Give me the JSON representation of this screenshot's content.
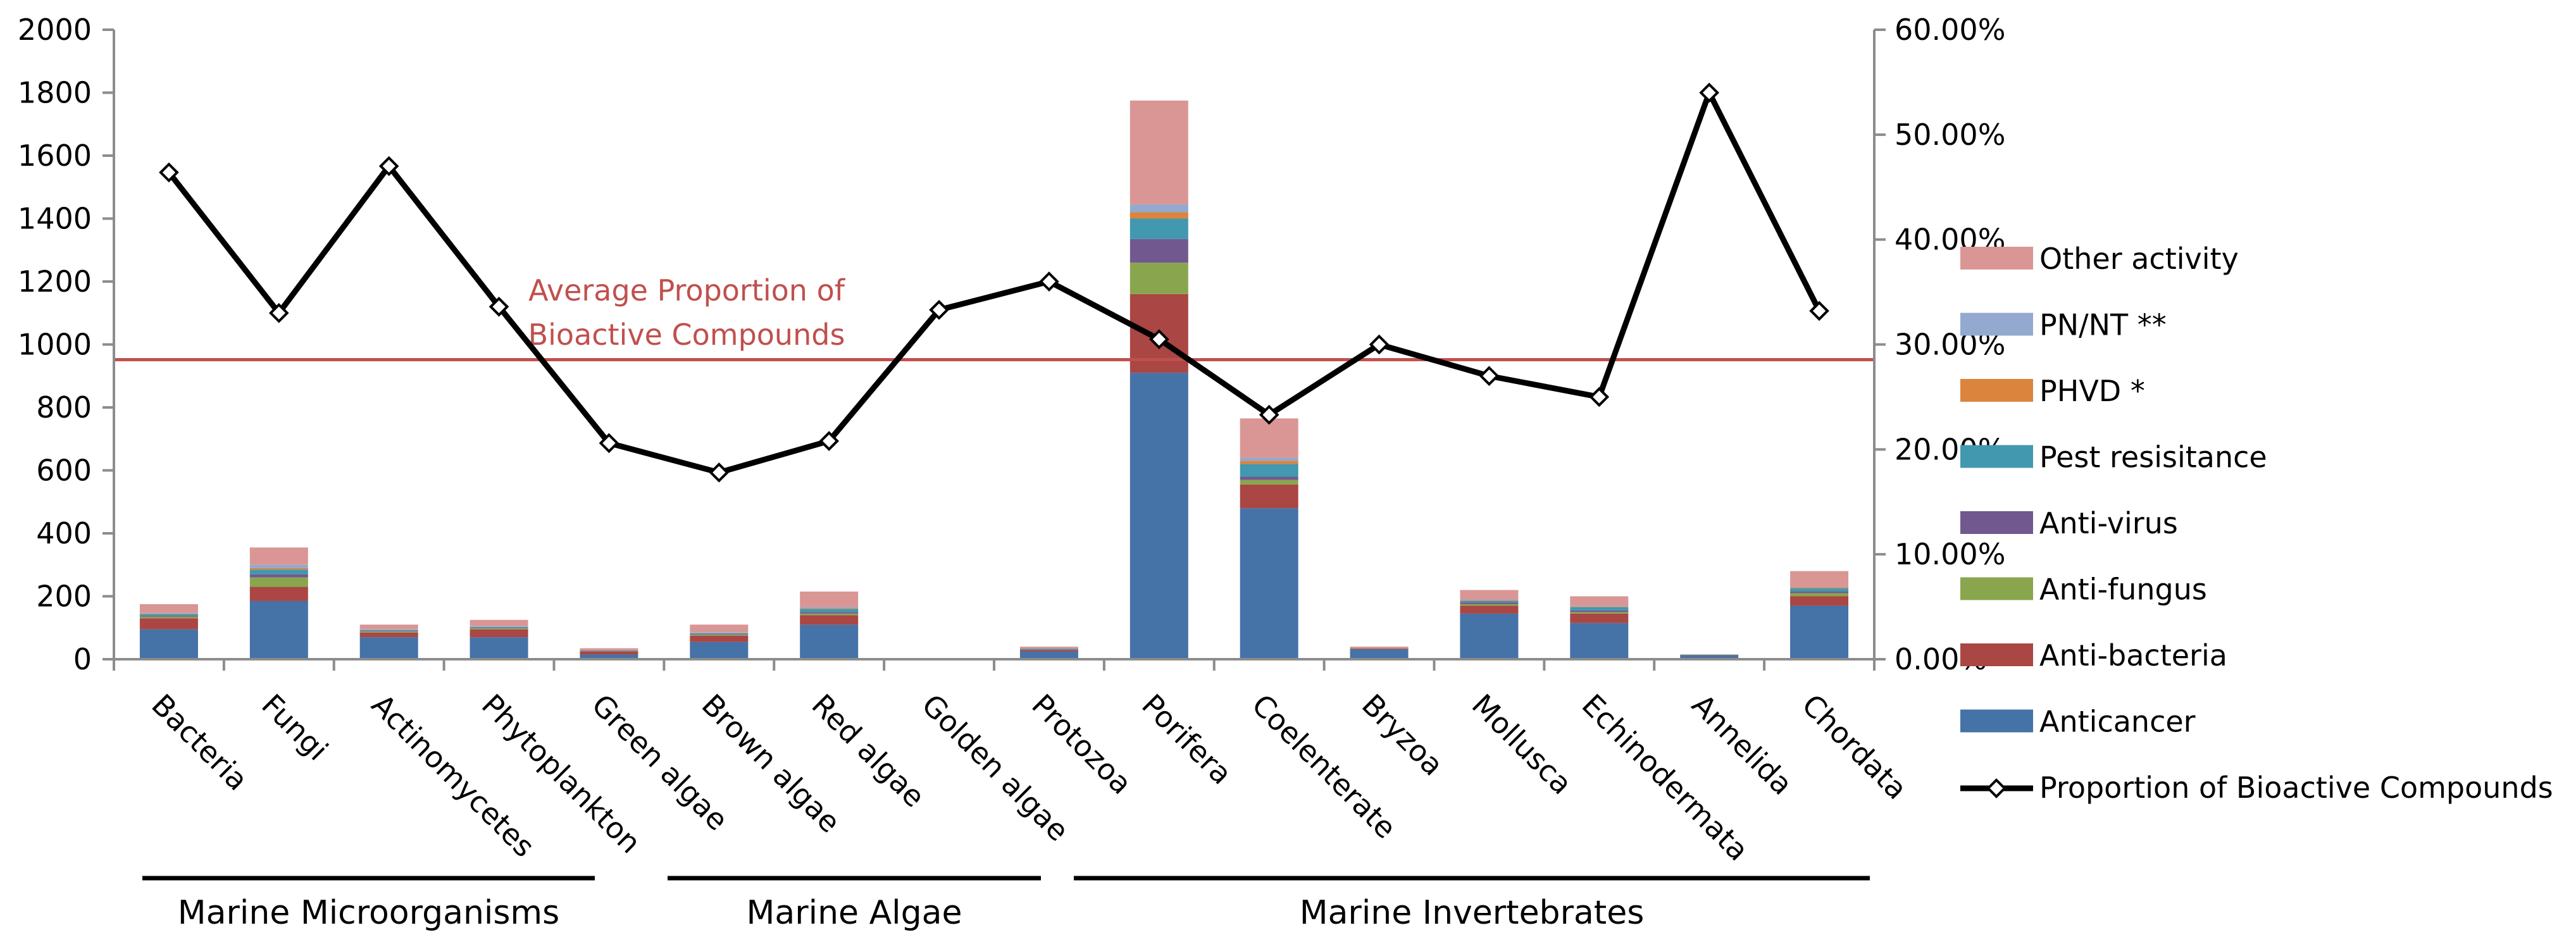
{
  "chart_data": {
    "type": "bar",
    "stacked": true,
    "secondary_type": "line",
    "categories": [
      "Bacteria",
      "Fungi",
      "Actinomycetes",
      "Phytoplankton",
      "Green algae",
      "Brown algae",
      "Red algae",
      "Golden algae",
      "Protozoa",
      "Porifera",
      "Coelenterate",
      "Bryzoa",
      "Mollusca",
      "Echinodermata",
      "Annelida",
      "Chordata"
    ],
    "series": [
      {
        "name": "Anticancer",
        "color": "#4572A7",
        "values": [
          95,
          185,
          70,
          70,
          15,
          55,
          110,
          0,
          25,
          910,
          480,
          30,
          145,
          115,
          10,
          170
        ]
      },
      {
        "name": "Anti-bacteria",
        "color": "#AA4643",
        "values": [
          35,
          45,
          15,
          25,
          10,
          20,
          30,
          0,
          5,
          250,
          75,
          3,
          25,
          30,
          2,
          30
        ]
      },
      {
        "name": "Anti-fungus",
        "color": "#89A54E",
        "values": [
          5,
          30,
          3,
          3,
          1,
          3,
          5,
          0,
          1,
          100,
          15,
          0,
          5,
          5,
          0,
          10
        ]
      },
      {
        "name": "Anti-virus",
        "color": "#71588F",
        "values": [
          3,
          10,
          2,
          2,
          1,
          2,
          5,
          0,
          1,
          75,
          10,
          0,
          5,
          5,
          0,
          5
        ]
      },
      {
        "name": "Pest resisitance",
        "color": "#4198AF",
        "values": [
          5,
          15,
          3,
          3,
          1,
          3,
          10,
          0,
          2,
          65,
          40,
          2,
          5,
          10,
          3,
          10
        ]
      },
      {
        "name": "PHVD *",
        "color": "#DB843D",
        "values": [
          2,
          5,
          1,
          1,
          0,
          1,
          2,
          0,
          0,
          20,
          10,
          0,
          2,
          2,
          0,
          3
        ]
      },
      {
        "name": "PN/NT **",
        "color": "#93A9CF",
        "values": [
          3,
          10,
          2,
          2,
          1,
          2,
          3,
          0,
          1,
          25,
          10,
          0,
          3,
          3,
          0,
          2
        ]
      },
      {
        "name": "Other activity",
        "color": "#D99694",
        "values": [
          27,
          55,
          14,
          19,
          6,
          24,
          50,
          0,
          5,
          330,
          125,
          5,
          30,
          30,
          0,
          50
        ]
      }
    ],
    "line_series": {
      "name": "Proportion of Bioactive Compounds",
      "color": "#000000",
      "values": [
        0.464,
        0.33,
        0.47,
        0.336,
        0.206,
        0.178,
        0.208,
        0.333,
        0.36,
        0.305,
        0.233,
        0.3,
        0.27,
        0.25,
        0.54,
        0.332
      ]
    },
    "reference_line": {
      "label_lines": [
        "Average Proportion of",
        "Bioactive Compounds"
      ],
      "color": "#C0504D",
      "value": 0.2855
    },
    "y_left": {
      "min": 0,
      "max": 2000,
      "step": 200,
      "ticks": [
        "0",
        "200",
        "400",
        "600",
        "800",
        "1000",
        "1200",
        "1400",
        "1600",
        "1800",
        "2000"
      ]
    },
    "y_right": {
      "min": 0,
      "max": 0.6,
      "ticks": [
        "0.00%",
        "10.00%",
        "20.00%",
        "30.00%",
        "40.00%",
        "50.00%",
        "60.00%"
      ]
    },
    "groups": [
      {
        "label": "Marine Microorganisms",
        "start": 0,
        "end": 4
      },
      {
        "label": "Marine Algae",
        "start": 5,
        "end": 8
      },
      {
        "label": "Marine Invertebrates",
        "start": 9,
        "end": 15
      }
    ],
    "legend": {
      "position": "right",
      "order": [
        "Other activity",
        "PN/NT **",
        "PHVD *",
        "Pest resisitance",
        "Anti-virus",
        "Anti-fungus",
        "Anti-bacteria",
        "Anticancer",
        "Proportion of Bioactive Compounds"
      ]
    },
    "grid": false
  }
}
